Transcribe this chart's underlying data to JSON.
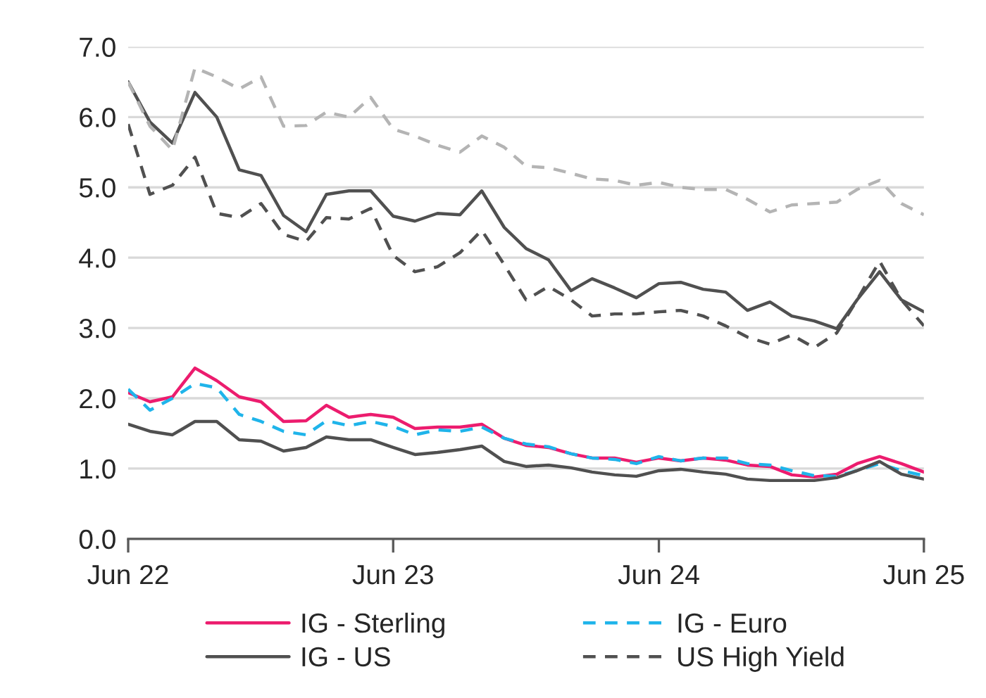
{
  "chart_data": {
    "type": "line",
    "x": [
      "2022-06",
      "2022-07",
      "2022-08",
      "2022-09",
      "2022-10",
      "2022-11",
      "2022-12",
      "2023-01",
      "2023-02",
      "2023-03",
      "2023-04",
      "2023-05",
      "2023-06",
      "2023-07",
      "2023-08",
      "2023-09",
      "2023-10",
      "2023-11",
      "2023-12",
      "2024-01",
      "2024-02",
      "2024-03",
      "2024-04",
      "2024-05",
      "2024-06",
      "2024-07",
      "2024-08",
      "2024-09",
      "2024-10",
      "2024-11",
      "2024-12",
      "2025-01",
      "2025-02",
      "2025-03",
      "2025-04",
      "2025-05",
      "2025-06"
    ],
    "series": [
      {
        "name": "IG - Sterling",
        "color": "#ec1c6e",
        "line_style": "solid",
        "values": [
          2.08,
          1.95,
          2.02,
          2.43,
          2.25,
          2.02,
          1.95,
          1.67,
          1.68,
          1.9,
          1.73,
          1.77,
          1.73,
          1.57,
          1.59,
          1.59,
          1.63,
          1.43,
          1.33,
          1.3,
          1.21,
          1.15,
          1.15,
          1.09,
          1.15,
          1.11,
          1.15,
          1.12,
          1.05,
          1.03,
          0.91,
          0.88,
          0.92,
          1.07,
          1.17,
          1.07,
          0.95
        ]
      },
      {
        "name": "IG - US",
        "color": "#505050",
        "line_style": "solid",
        "values": [
          6.5,
          5.93,
          5.63,
          6.35,
          6.0,
          5.25,
          5.17,
          4.6,
          4.37,
          4.9,
          4.95,
          4.95,
          4.59,
          4.52,
          4.63,
          4.61,
          4.95,
          4.43,
          4.13,
          3.97,
          3.53,
          3.7,
          3.57,
          3.43,
          3.63,
          3.65,
          3.55,
          3.51,
          3.25,
          3.37,
          3.17,
          3.1,
          2.99,
          3.4,
          3.8,
          3.4,
          3.23
        ]
      },
      {
        "name": "IG - Euro",
        "color": "#1fb4ea",
        "line_style": "dashed",
        "values": [
          2.13,
          1.83,
          2.0,
          2.21,
          2.15,
          1.77,
          1.67,
          1.53,
          1.48,
          1.68,
          1.61,
          1.67,
          1.6,
          1.48,
          1.55,
          1.53,
          1.59,
          1.43,
          1.35,
          1.31,
          1.21,
          1.15,
          1.13,
          1.07,
          1.17,
          1.11,
          1.15,
          1.15,
          1.07,
          1.05,
          0.97,
          0.9,
          0.89,
          0.97,
          1.07,
          0.97,
          0.9
        ]
      },
      {
        "name": "US High Yield",
        "color": "#505050",
        "line_style": "dashed",
        "values": [
          5.9,
          4.9,
          5.03,
          5.43,
          4.63,
          4.57,
          4.77,
          4.33,
          4.23,
          4.57,
          4.55,
          4.7,
          4.03,
          3.8,
          3.87,
          4.07,
          4.39,
          3.9,
          3.4,
          3.59,
          3.4,
          3.17,
          3.2,
          3.2,
          3.23,
          3.25,
          3.17,
          3.03,
          2.87,
          2.77,
          2.9,
          2.72,
          2.93,
          3.4,
          3.95,
          3.4,
          3.03
        ]
      },
      {
        "color": "#505050",
        "line_style": "solid",
        "values": [
          1.63,
          1.53,
          1.48,
          1.67,
          1.67,
          1.41,
          1.39,
          1.25,
          1.3,
          1.45,
          1.41,
          1.41,
          1.3,
          1.2,
          1.23,
          1.27,
          1.32,
          1.1,
          1.03,
          1.05,
          1.01,
          0.95,
          0.91,
          0.89,
          0.97,
          0.99,
          0.95,
          0.92,
          0.85,
          0.83,
          0.83,
          0.83,
          0.87,
          0.97,
          1.1,
          0.92,
          0.85
        ]
      },
      {
        "color": "#b4b4b4",
        "line_style": "dashed",
        "values": [
          6.5,
          5.87,
          5.53,
          6.7,
          6.57,
          6.4,
          6.57,
          5.87,
          5.88,
          6.07,
          6.0,
          6.28,
          5.83,
          5.73,
          5.6,
          5.5,
          5.73,
          5.57,
          5.3,
          5.28,
          5.2,
          5.12,
          5.1,
          5.03,
          5.07,
          5.0,
          4.97,
          4.97,
          4.83,
          4.65,
          4.75,
          4.77,
          4.79,
          4.97,
          5.1,
          4.77,
          4.61
        ]
      }
    ],
    "xlim": [
      "2022-06",
      "2025-06"
    ],
    "xticks": [
      {
        "value": "2022-06",
        "label": "Jun 22"
      },
      {
        "value": "2023-06",
        "label": "Jun 23"
      },
      {
        "value": "2024-06",
        "label": "Jun 24"
      },
      {
        "value": "2025-06",
        "label": "Jun 25"
      }
    ],
    "ylim": [
      0,
      7
    ],
    "yticks": [
      {
        "value": 0,
        "label": "0.0"
      },
      {
        "value": 1,
        "label": "1.0"
      },
      {
        "value": 2,
        "label": "2.0"
      },
      {
        "value": 3,
        "label": "3.0"
      },
      {
        "value": 4,
        "label": "4.0"
      },
      {
        "value": 5,
        "label": "5.0"
      },
      {
        "value": 6,
        "label": "6.0"
      },
      {
        "value": 7,
        "label": "7.0"
      }
    ],
    "grid": "y",
    "legend": "bottom",
    "marker": "none"
  }
}
